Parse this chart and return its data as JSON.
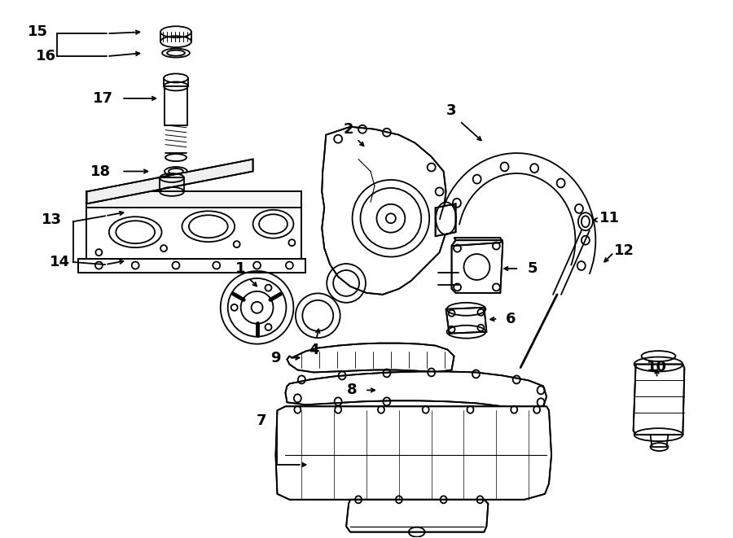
{
  "background_color": "#ffffff",
  "line_color": "#000000",
  "lw": 1.3,
  "fig_width": 9.0,
  "fig_height": 6.61,
  "dpi": 100
}
